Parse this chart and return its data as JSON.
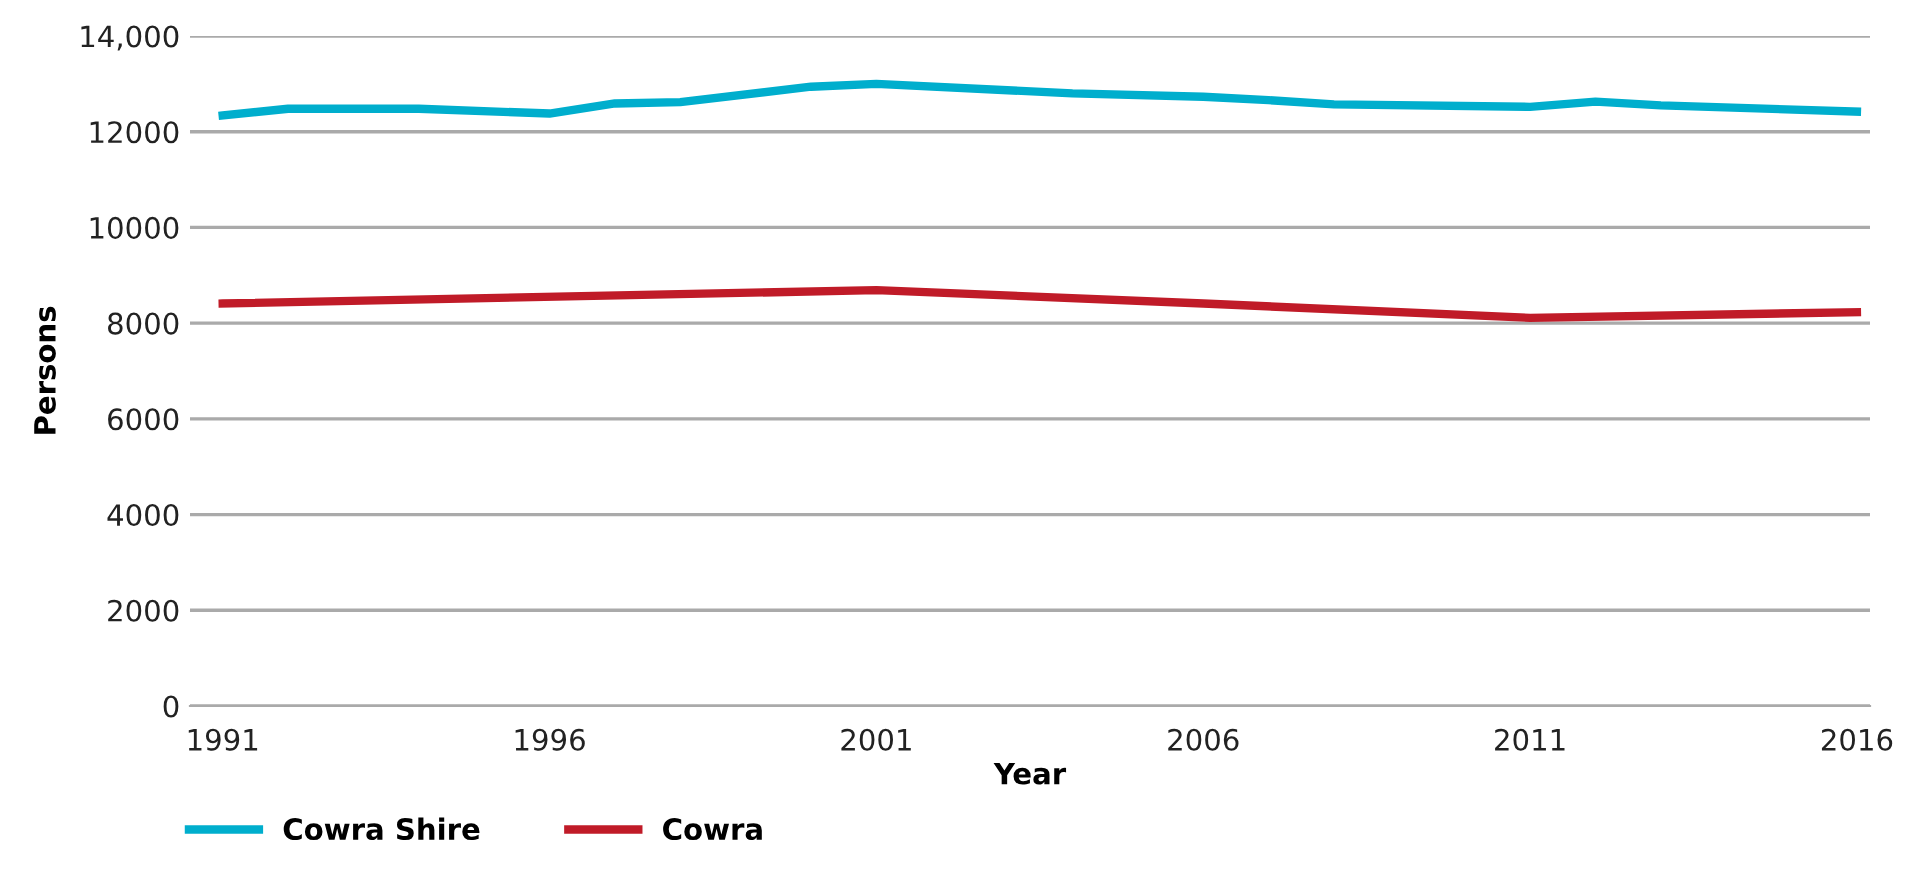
{
  "chart_data": {
    "type": "line",
    "xlabel": "Year",
    "ylabel": "Persons",
    "xlim": [
      1990.5,
      2016.2
    ],
    "xticks": [
      1991,
      1996,
      2001,
      2006,
      2011,
      2016
    ],
    "ylim": [
      0,
      14000
    ],
    "yticks": [
      0,
      2000,
      4000,
      6000,
      8000,
      10000,
      12000,
      {
        "value": 14000,
        "label": "14,000"
      }
    ],
    "grid": "y",
    "legend": "bottom left",
    "marker": "none",
    "line_style": "solid",
    "series": [
      {
        "name": "Cowra Shire",
        "color": "#00aecd",
        "x": [
          1991,
          1992,
          1994,
          1996,
          1997,
          1998,
          2000,
          2001,
          2004,
          2006,
          2007,
          2008,
          2011,
          2012,
          2013,
          2016
        ],
        "values": [
          12340,
          12480,
          12480,
          12380,
          12590,
          12620,
          12940,
          13000,
          12800,
          12730,
          12660,
          12570,
          12520,
          12630,
          12550,
          12420
        ]
      },
      {
        "name": "Cowra",
        "color": "#c01b28",
        "x": [
          1991,
          2001,
          2006,
          2011,
          2016
        ],
        "values": [
          8410,
          8690,
          8410,
          8110,
          8230
        ]
      }
    ]
  }
}
